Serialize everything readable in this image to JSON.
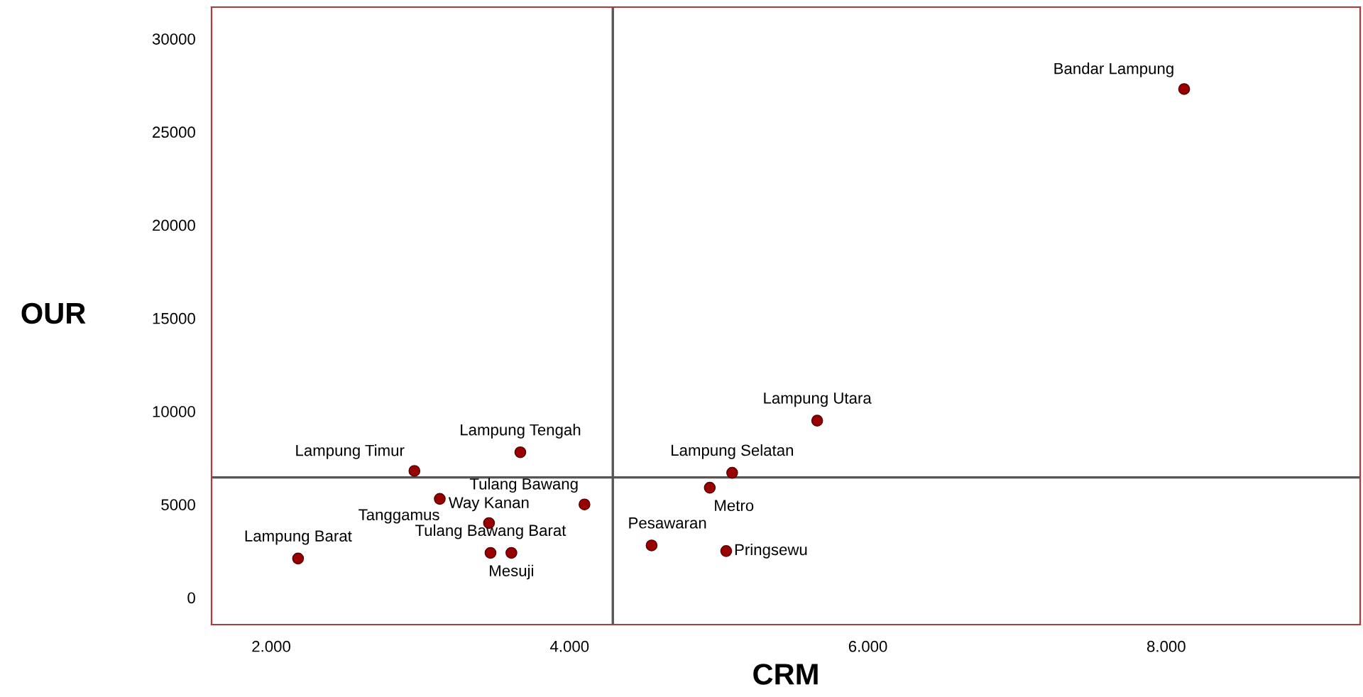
{
  "chart_data": {
    "type": "scatter",
    "xlabel": "CRM",
    "ylabel": "OUR",
    "x": [
      8120,
      5660,
      3670,
      2960,
      5090,
      3130,
      4100,
      4940,
      3460,
      3470,
      3610,
      4550,
      5050,
      2180
    ],
    "series": [
      {
        "color": "#990000",
        "values": [
          27300,
          9500,
          7800,
          6800,
          6700,
          5300,
          5000,
          5900,
          4000,
          2400,
          2400,
          2800,
          2500,
          2100
        ]
      }
    ],
    "marker": "circle",
    "annotations": [
      {
        "text": "Bandar Lampung",
        "x": 8120,
        "y": 27300
      },
      {
        "text": "Lampung Utara",
        "x": 5660,
        "y": 9500
      },
      {
        "text": "Lampung Tengah",
        "x": 3670,
        "y": 7800
      },
      {
        "text": "Lampung Timur",
        "x": 2960,
        "y": 6800
      },
      {
        "text": "Lampung Selatan",
        "x": 5090,
        "y": 6700
      },
      {
        "text": "Tanggamus",
        "x": 3130,
        "y": 5300
      },
      {
        "text": "Tulang Bawang",
        "x": 4100,
        "y": 5000
      },
      {
        "text": "Metro",
        "x": 4940,
        "y": 5900
      },
      {
        "text": "Way Kanan",
        "x": 3460,
        "y": 4000
      },
      {
        "text": "Tulang Bawang Barat",
        "x": 3470,
        "y": 2400
      },
      {
        "text": "Mesuji",
        "x": 3610,
        "y": 2400
      },
      {
        "text": "Pesawaran",
        "x": 4550,
        "y": 2800
      },
      {
        "text": "Pringsewu",
        "x": 5050,
        "y": 2500
      },
      {
        "text": "Lampung Barat",
        "x": 2180,
        "y": 2100
      }
    ],
    "ref_lines": [
      {
        "axis": "x",
        "value": 4290,
        "color": "#555555"
      },
      {
        "axis": "y",
        "value": 6450,
        "color": "#555555"
      }
    ],
    "xlim": [
      1600,
      9300
    ],
    "ylim": [
      -1450,
      31700
    ],
    "xticks": [
      {
        "value": 2000,
        "label": "2.000"
      },
      {
        "value": 4000,
        "label": "4.000"
      },
      {
        "value": 6000,
        "label": "6.000"
      },
      {
        "value": 8000,
        "label": "8.000"
      }
    ],
    "yticks": [
      0,
      5000,
      10000,
      15000,
      20000,
      25000,
      30000
    ],
    "grid": false,
    "legend": false
  }
}
